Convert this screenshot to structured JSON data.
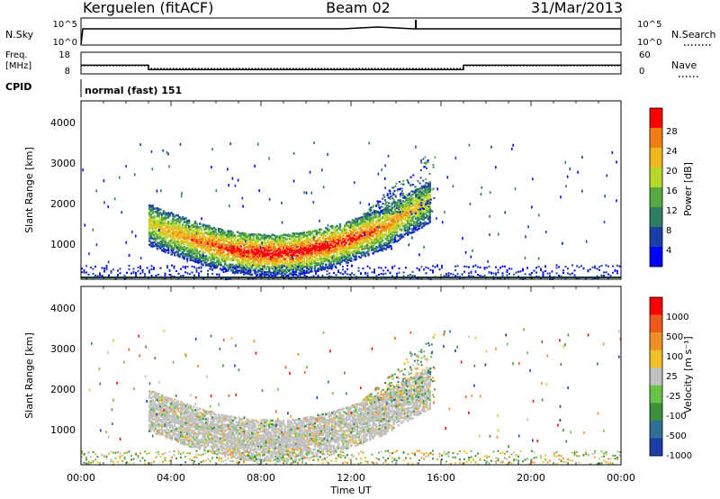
{
  "header": {
    "station": "Kerguelen (fitACF)",
    "beam": "Beam 02",
    "date": "31/Mar/2013"
  },
  "noise_panel": {
    "left_label": "N.Sky",
    "right_label": "N.Search",
    "left_ticks": [
      "10^5",
      "10^0"
    ],
    "right_ticks": [
      "10^5",
      "10^0"
    ]
  },
  "freq_panel": {
    "left_label_line1": "Freq.",
    "left_label_line2": "[MHz]",
    "right_label": "Nave",
    "left_ticks": [
      "18",
      "8"
    ],
    "right_ticks": [
      "60",
      "0"
    ]
  },
  "cpid": {
    "label": "CPID",
    "value": "normal (fast) 151"
  },
  "power_panel": {
    "ylabel": "Slant Range [km]",
    "yticks": [
      "4000",
      "3000",
      "2000",
      "1000"
    ],
    "colorbar_label": "Power [dB]",
    "colorbar_ticks": [
      "28",
      "24",
      "20",
      "16",
      "12",
      "8",
      "4"
    ],
    "colors": [
      "#0000ff",
      "#1b3fa6",
      "#2d7d63",
      "#56a93e",
      "#b6d82b",
      "#f0b81c",
      "#f07e12",
      "#ff0000"
    ]
  },
  "velocity_panel": {
    "ylabel": "Slant Range [km]",
    "yticks": [
      "4000",
      "3000",
      "2000",
      "1000"
    ],
    "colorbar_label": "Velocity [m s⁻¹]",
    "colorbar_ticks": [
      "1000",
      "500",
      "100",
      "25",
      "-25",
      "-100",
      "-500",
      "-1000"
    ],
    "colors": [
      "#1c3ea5",
      "#2f6e95",
      "#3c8f3c",
      "#69c445",
      "#c0c0c0",
      "#f0c22a",
      "#f09024",
      "#f0581e",
      "#ff0000"
    ]
  },
  "x_axis": {
    "label": "Time UT",
    "ticks": [
      "00:00",
      "04:00",
      "08:00",
      "12:00",
      "16:00",
      "20:00",
      "00:00"
    ]
  },
  "chart_data": {
    "type": "heatmap",
    "title": "Kerguelen (fitACF)",
    "xlabel": "Time UT",
    "ylabel": "Slant Range [km]",
    "xlim_hours": [
      0,
      24
    ],
    "ylim_km": [
      180,
      4600
    ],
    "beam": "Beam 02",
    "date": "31/Mar/2013",
    "power_db_range": [
      0,
      32
    ],
    "velocity_range": [
      -1250,
      1250
    ],
    "frequency_segments_mhz": [
      {
        "start_h": 0.0,
        "end_h": 3.0,
        "freq": 12.0
      },
      {
        "start_h": 3.0,
        "end_h": 17.0,
        "freq": 10.0
      },
      {
        "start_h": 17.0,
        "end_h": 24.0,
        "freq": 12.0
      }
    ],
    "nave_level": 30,
    "main_echo_band": {
      "start_h": 3.0,
      "end_h": 15.5,
      "range_km_start": 1600,
      "range_km_min": 850,
      "range_km_end": 1800,
      "peak_power_db": 28,
      "typical_velocity": 0
    }
  }
}
